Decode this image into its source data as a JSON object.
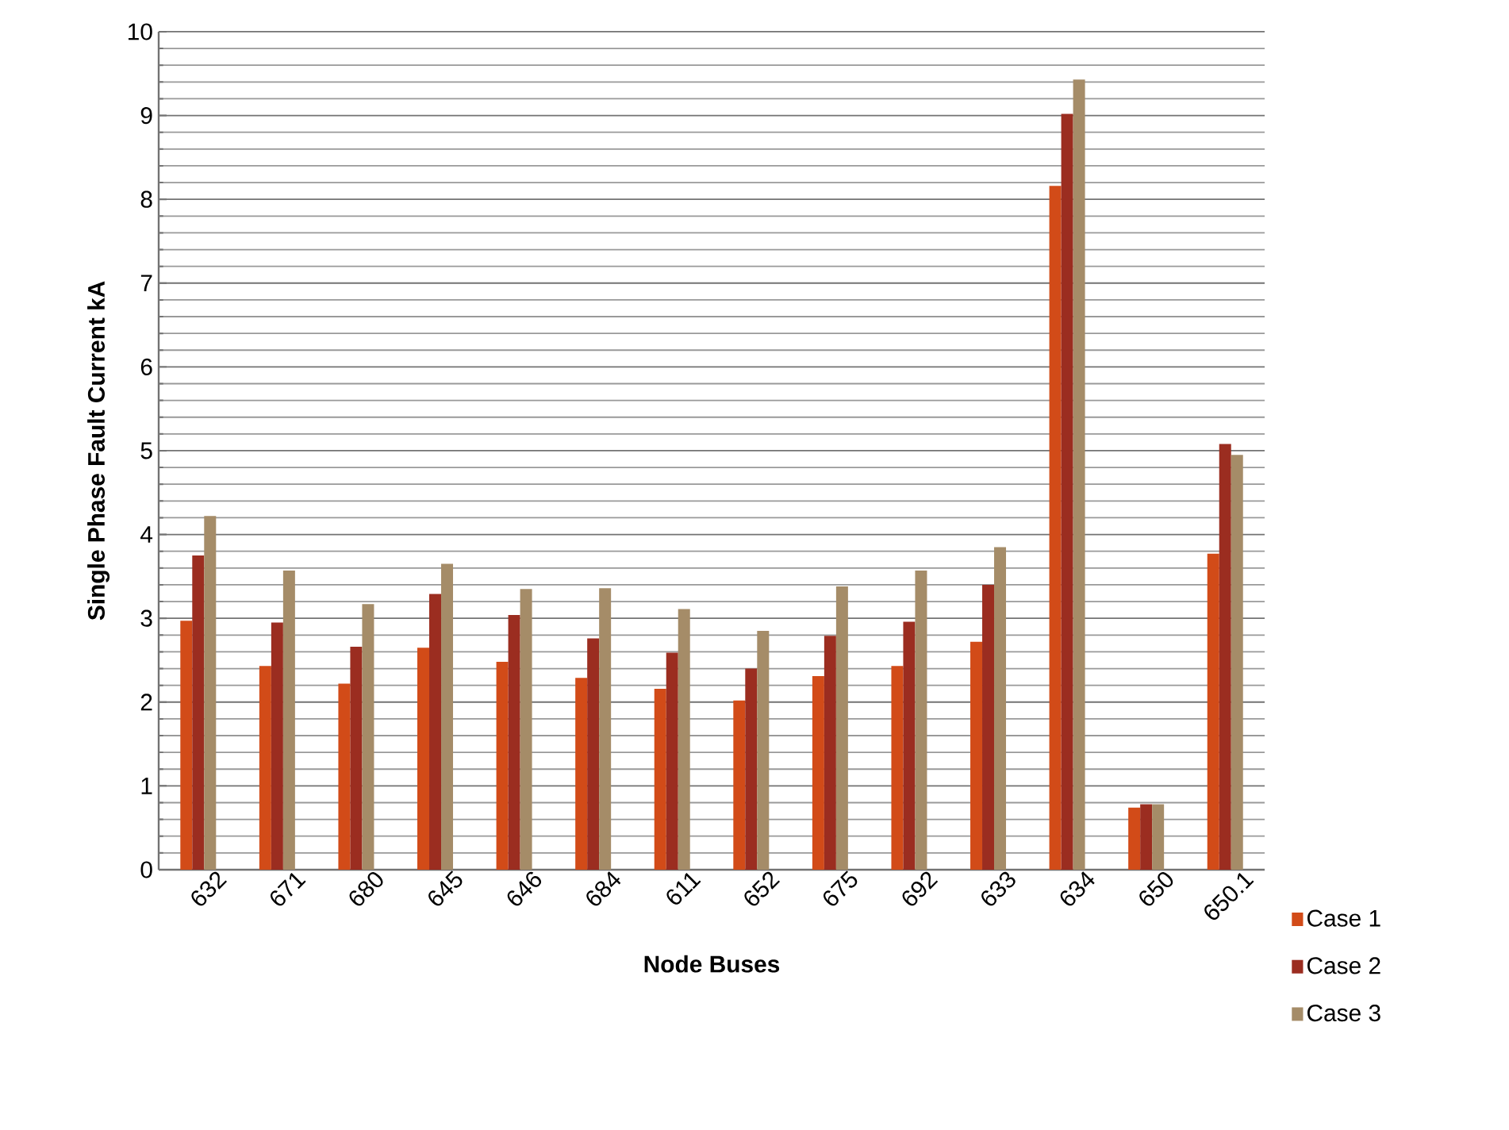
{
  "chart_data": {
    "type": "bar",
    "xlabel": "Node Buses",
    "ylabel": "Single Phase Fault Current kA",
    "categories": [
      "632",
      "671",
      "680",
      "645",
      "646",
      "684",
      "611",
      "652",
      "675",
      "692",
      "633",
      "634",
      "650",
      "650.1"
    ],
    "series": [
      {
        "name": "Case 1",
        "color": "#d24b18",
        "values": [
          2.97,
          2.43,
          2.22,
          2.65,
          2.48,
          2.29,
          2.16,
          2.02,
          2.31,
          2.43,
          2.72,
          8.16,
          0.74,
          3.77
        ]
      },
      {
        "name": "Case 2",
        "color": "#9b2d20",
        "values": [
          3.75,
          2.95,
          2.66,
          3.29,
          3.04,
          2.76,
          2.59,
          2.4,
          2.79,
          2.96,
          3.4,
          9.02,
          0.78,
          5.08
        ]
      },
      {
        "name": "Case 3",
        "color": "#a58c68",
        "values": [
          4.22,
          3.57,
          3.17,
          3.65,
          3.35,
          3.36,
          3.11,
          2.85,
          3.38,
          3.57,
          3.85,
          9.43,
          0.78,
          4.95
        ]
      }
    ],
    "ylim": [
      0,
      10
    ],
    "yticks": [
      0,
      1,
      2,
      3,
      4,
      5,
      6,
      7,
      8,
      9,
      10
    ],
    "grid": "y",
    "legend": "bottom right"
  }
}
